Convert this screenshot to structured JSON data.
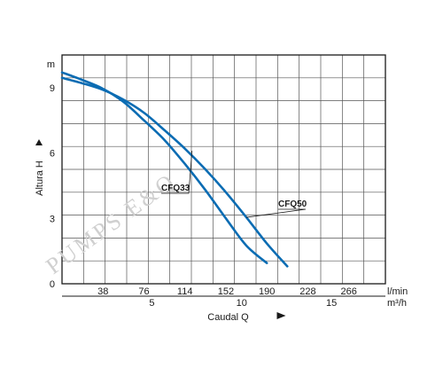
{
  "chart_data": {
    "type": "line",
    "xlabel": "Caudal Q",
    "ylabel": "Altura H",
    "x_unit": "l/min",
    "x_ticks": [
      "38",
      "76",
      "114",
      "152",
      "190",
      "228",
      "266"
    ],
    "x2_unit": "m³/h",
    "x2_ticks": [
      "5",
      "10",
      "15"
    ],
    "y_unit": "m",
    "y_ticks": [
      "0",
      "3",
      "6",
      "9"
    ],
    "xlim": [
      0,
      300
    ],
    "ylim": [
      0,
      10.5
    ],
    "x2_per_x1": 0.06,
    "grid": true,
    "series": [
      {
        "name": "CFQ33",
        "x": [
          0,
          19,
          38,
          57,
          76,
          95,
          114,
          133,
          152,
          171,
          190
        ],
        "y": [
          9.7,
          9.35,
          8.95,
          8.35,
          7.5,
          6.6,
          5.5,
          4.3,
          3.0,
          1.75,
          0.95
        ],
        "color": "#0b6cb3"
      },
      {
        "name": "CFQ50",
        "x": [
          0,
          19,
          38,
          57,
          76,
          95,
          114,
          133,
          152,
          171,
          190,
          209
        ],
        "y": [
          9.45,
          9.2,
          8.9,
          8.45,
          7.85,
          7.05,
          6.2,
          5.25,
          4.2,
          3.05,
          1.85,
          0.8
        ],
        "color": "#0b6cb3"
      }
    ],
    "watermark": "PUMPS E&Q"
  }
}
